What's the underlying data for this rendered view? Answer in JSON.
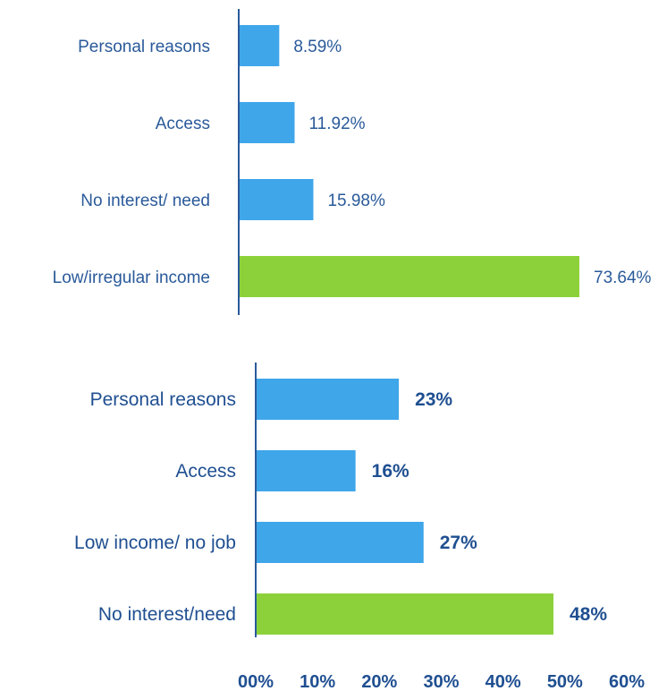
{
  "colors": {
    "bar": "#3fa6ea",
    "highlight": "#8dd13a",
    "axis": "#2a5a9a",
    "text": "#2a5a9a"
  },
  "chart_data": [
    {
      "type": "bar",
      "orientation": "horizontal",
      "categories": [
        "Personal reasons",
        "Access",
        "No interest/ need",
        "Low/irregular income"
      ],
      "values": [
        8.59,
        11.92,
        15.98,
        73.64
      ],
      "value_labels": [
        "8.59%",
        "11.92%",
        "15.98%",
        "73.64%"
      ],
      "highlight_index": 3,
      "xlim": [
        0,
        80
      ]
    },
    {
      "type": "bar",
      "orientation": "horizontal",
      "categories": [
        "Personal reasons",
        "Access",
        "Low income/ no job",
        "No interest/need"
      ],
      "values": [
        23,
        16,
        27,
        48
      ],
      "value_labels": [
        "23%",
        "16%",
        "27%",
        "48%"
      ],
      "highlight_index": 3,
      "xlim": [
        0,
        60
      ],
      "xticks": [
        "00%",
        "10%",
        "20%",
        "30%",
        "40%",
        "50%",
        "60%"
      ]
    }
  ]
}
